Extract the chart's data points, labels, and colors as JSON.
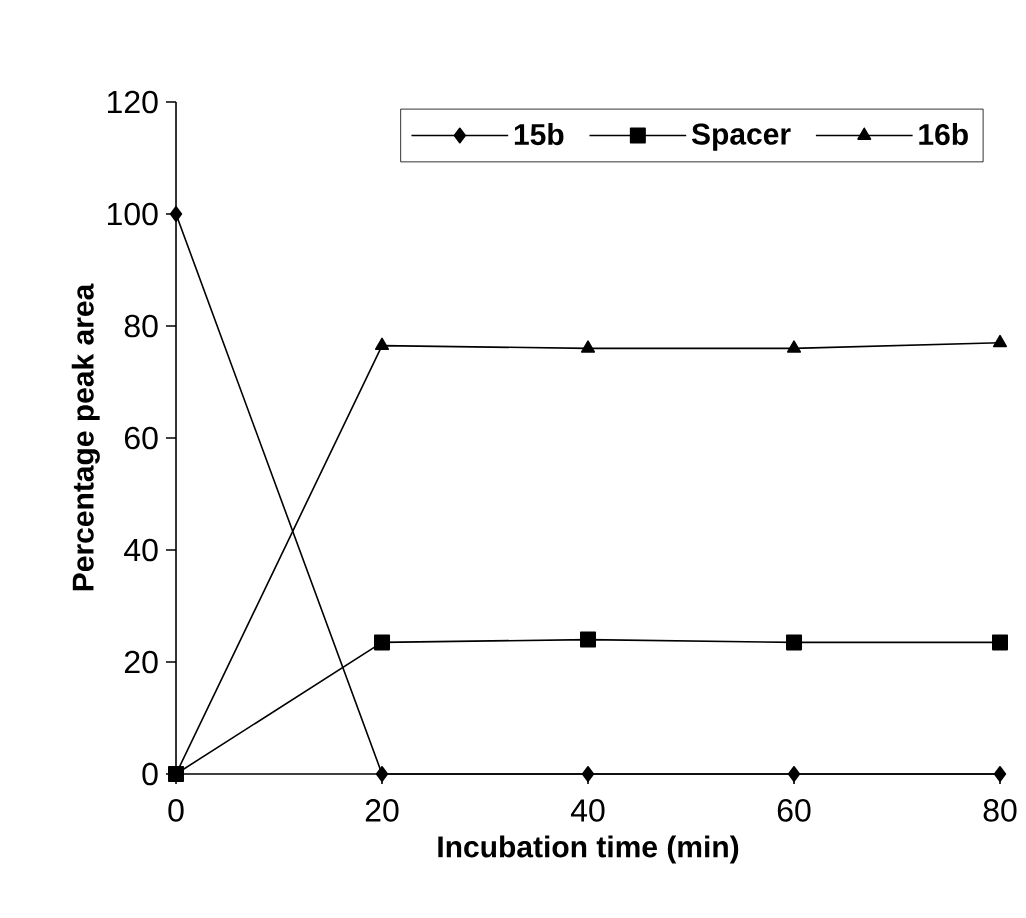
{
  "chart_data": {
    "type": "line",
    "xlabel": "Incubation time (min)",
    "ylabel": "Percentage peak area",
    "x": [
      0,
      20,
      40,
      60,
      80
    ],
    "series": [
      {
        "name": "15b",
        "color": "#000000",
        "marker": "diamond",
        "values": [
          100,
          0,
          0,
          0,
          0
        ]
      },
      {
        "name": "Spacer",
        "color": "#000000",
        "marker": "square",
        "values": [
          0,
          23.5,
          24,
          23.5,
          23.5
        ]
      },
      {
        "name": "16b",
        "color": "#000000",
        "marker": "triangle",
        "values": [
          0,
          76.5,
          76,
          76,
          77
        ]
      }
    ],
    "xlim": [
      0,
      80
    ],
    "xticks": [
      0,
      20,
      40,
      60,
      80
    ],
    "ylim": [
      0,
      120
    ],
    "yticks": [
      0,
      20,
      40,
      60,
      80,
      100,
      120
    ],
    "grid": false,
    "legend": "top right",
    "line_style": "solid"
  }
}
